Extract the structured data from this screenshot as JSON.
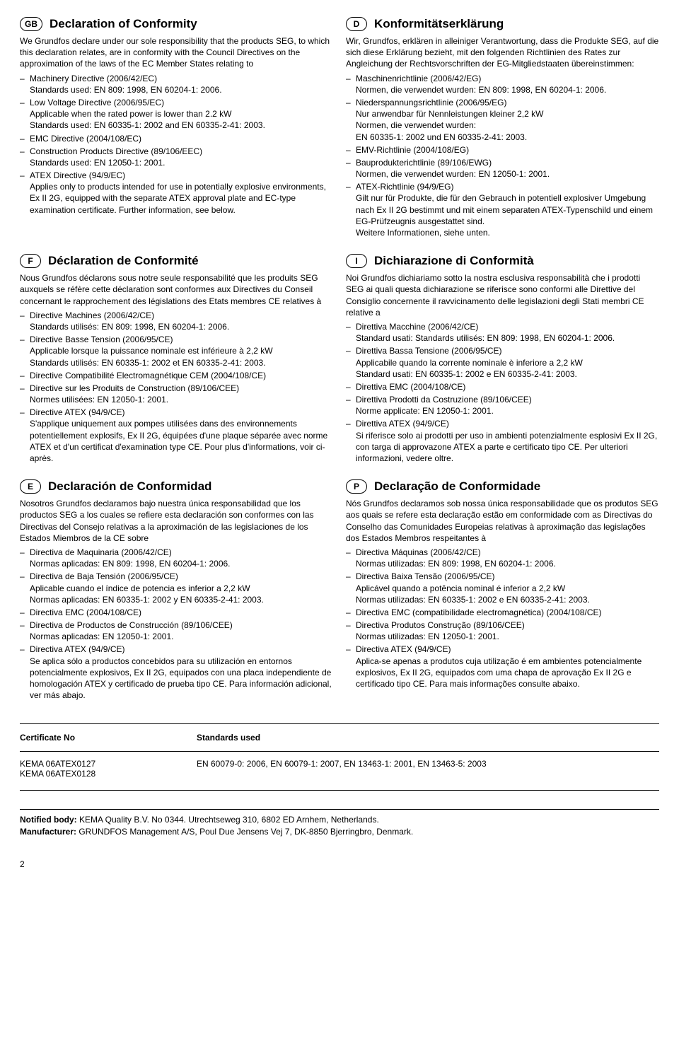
{
  "sections": [
    {
      "badge": "GB",
      "title": "Declaration of Conformity",
      "intro": "We Grundfos declare under our sole responsibility that the products SEG, to which this declaration relates, are in conformity with the Council Directives on the approximation of the laws of the EC Member States relating to",
      "items": [
        {
          "title": "Machinery Directive (2006/42/EC)",
          "lines": [
            "Standards used: EN 809: 1998, EN 60204-1: 2006."
          ]
        },
        {
          "title": "Low Voltage Directive (2006/95/EC)",
          "lines": [
            "Applicable when the rated power is lower than 2.2 kW",
            "Standards used: EN 60335-1: 2002 and EN 60335-2-41: 2003."
          ]
        },
        {
          "title": "EMC Directive (2004/108/EC)",
          "lines": []
        },
        {
          "title": "Construction Products Directive (89/106/EEC)",
          "lines": [
            "Standards used: EN 12050-1: 2001."
          ]
        },
        {
          "title": "ATEX Directive (94/9/EC)",
          "lines": [
            "Applies only to products intended for use in potentially explosive environments, Ex II 2G, equipped with the separate ATEX approval plate and EC-type examination certificate. Further information, see below."
          ]
        }
      ]
    },
    {
      "badge": "D",
      "title": "Konformitätserklärung",
      "intro": "Wir, Grundfos, erklären in alleiniger Verantwortung, dass die Produkte SEG, auf die sich diese Erklärung bezieht, mit den folgenden Richtlinien des Rates zur Angleichung der Rechtsvorschriften der EG-Mitgliedstaaten übereinstimmen:",
      "items": [
        {
          "title": "Maschinenrichtlinie (2006/42/EG)",
          "lines": [
            "Normen, die verwendet wurden: EN 809: 1998, EN 60204-1: 2006."
          ]
        },
        {
          "title": "Niederspannungsrichtlinie (2006/95/EG)",
          "lines": [
            "Nur anwendbar für Nennleistungen kleiner 2,2 kW",
            "Normen, die verwendet wurden:",
            "EN 60335-1: 2002 und EN 60335-2-41: 2003."
          ]
        },
        {
          "title": "EMV-Richtlinie (2004/108/EG)",
          "lines": []
        },
        {
          "title": "Bauprodukterichtlinie (89/106/EWG)",
          "lines": [
            "Normen, die verwendet wurden: EN 12050-1: 2001."
          ]
        },
        {
          "title": "ATEX-Richtlinie (94/9/EG)",
          "lines": [
            "Gilt nur für Produkte, die für den Gebrauch in potentiell explosiver Umgebung nach Ex II 2G bestimmt und mit einem separaten ATEX-Typenschild und einem EG-Prüfzeugnis ausgestattet sind.",
            "Weitere Informationen, siehe unten."
          ]
        }
      ]
    },
    {
      "badge": "F",
      "title": "Déclaration de Conformité",
      "intro": "Nous Grundfos déclarons sous notre seule responsabilité que les produits SEG auxquels se réfère cette déclaration sont conformes aux Directives du Conseil concernant le rapprochement des législations des Etats membres CE relatives à",
      "items": [
        {
          "title": "Directive Machines (2006/42/CE)",
          "lines": [
            "Standards utilisés: EN 809: 1998, EN 60204-1: 2006."
          ]
        },
        {
          "title": "Directive Basse Tension (2006/95/CE)",
          "lines": [
            "Applicable lorsque la puissance nominale est inférieure à 2,2 kW",
            "Standards utilisés: EN 60335-1: 2002 et EN 60335-2-41: 2003."
          ]
        },
        {
          "title": "Directive Compatibilité Electromagnétique CEM (2004/108/CE)",
          "lines": []
        },
        {
          "title": "Directive sur les Produits de Construction (89/106/CEE)",
          "lines": [
            "Normes utilisées: EN 12050-1: 2001."
          ]
        },
        {
          "title": "Directive ATEX (94/9/CE)",
          "lines": [
            "S'applique uniquement aux pompes utilisées dans des environnements potentiellement explosifs, Ex II 2G, équipées d'une plaque séparée avec norme ATEX et d'un certificat d'examination type CE. Pour plus d'informations, voir ci-après."
          ]
        }
      ]
    },
    {
      "badge": "I",
      "title": "Dichiarazione di Conformità",
      "intro": "Noi Grundfos dichiariamo sotto la nostra esclusiva responsabilità che i prodotti SEG ai quali questa dichiarazione se riferisce sono conformi alle Direttive del Consiglio concernente il ravvicinamento delle legislazioni degli Stati membri CE relative a",
      "items": [
        {
          "title": "Direttiva Macchine (2006/42/CE)",
          "lines": [
            "Standard usati: Standards utilisés: EN 809: 1998, EN 60204-1: 2006."
          ]
        },
        {
          "title": "Direttiva Bassa Tensione (2006/95/CE)",
          "lines": [
            "Applicabile quando la corrente nominale è inferiore a 2,2 kW",
            "Standard usati: EN 60335-1: 2002 e EN 60335-2-41: 2003."
          ]
        },
        {
          "title": "Direttiva EMC (2004/108/CE)",
          "lines": []
        },
        {
          "title": "Direttiva Prodotti da Costruzione (89/106/CEE)",
          "lines": [
            "Norme applicate: EN 12050-1: 2001."
          ]
        },
        {
          "title": "Direttiva ATEX (94/9/CE)",
          "lines": [
            "Si riferisce solo ai prodotti per uso in ambienti potenzialmente esplosivi Ex II 2G, con targa di approvazone ATEX a parte e certificato tipo CE. Per ulteriori informazioni, vedere oltre."
          ]
        }
      ]
    },
    {
      "badge": "E",
      "title": "Declaración de Conformidad",
      "intro": "Nosotros Grundfos declaramos bajo nuestra única responsabilidad que los productos SEG a los cuales se refiere esta declaración son conformes con las Directivas del Consejo relativas a la aproximación de las legislaciones de los Estados Miembros de la CE sobre",
      "items": [
        {
          "title": "Directiva de Maquinaria (2006/42/CE)",
          "lines": [
            "Normas aplicadas: EN 809: 1998, EN 60204-1: 2006."
          ]
        },
        {
          "title": "Directiva de Baja Tensión (2006/95/CE)",
          "lines": [
            "Aplicable cuando el índice de potencia es inferior a 2,2 kW",
            "Normas aplicadas: EN 60335-1: 2002 y EN 60335-2-41: 2003."
          ]
        },
        {
          "title": "Directiva EMC (2004/108/CE)",
          "lines": []
        },
        {
          "title": "Directiva de Productos de Construcción (89/106/CEE)",
          "lines": [
            "Normas aplicadas: EN 12050-1: 2001."
          ]
        },
        {
          "title": "Directiva ATEX (94/9/CE)",
          "lines": [
            "Se aplica sólo a productos concebidos para su utilización en entornos potencialmente explosivos, Ex II 2G, equipados con una placa independiente de homologación ATEX y certificado de prueba tipo CE. Para información adicional, ver más abajo."
          ]
        }
      ]
    },
    {
      "badge": "P",
      "title": "Declaração de Conformidade",
      "intro": "Nós Grundfos declaramos sob nossa única responsabilidade que os produtos SEG aos quais se refere esta declaração estão em conformidade com as Directivas do Conselho das Comunidades Europeias relativas à aproximação das legislações dos Estados Membros respeitantes à",
      "items": [
        {
          "title": "Directiva Máquinas (2006/42/CE)",
          "lines": [
            "Normas utilizadas: EN 809: 1998, EN 60204-1: 2006."
          ]
        },
        {
          "title": "Directiva Baixa Tensão (2006/95/CE)",
          "lines": [
            "Aplicável quando a potência nominal é inferior a 2,2 kW",
            "Normas utilizadas: EN 60335-1: 2002 e EN 60335-2-41: 2003."
          ]
        },
        {
          "title": "Directiva EMC (compatibilidade electromagnética) (2004/108/CE)",
          "lines": []
        },
        {
          "title": "Directiva Produtos Construção (89/106/CEE)",
          "lines": [
            "Normas utilizadas: EN 12050-1: 2001."
          ]
        },
        {
          "title": "Directiva ATEX (94/9/CE)",
          "lines": [
            "Aplica-se apenas a produtos cuja utilização é em ambientes potencialmente explosivos, Ex II 2G, equipados com uma chapa de aprovação Ex II 2G e certificado tipo CE. Para mais informações consulte abaixo."
          ]
        }
      ]
    }
  ],
  "cert": {
    "h1": "Certificate No",
    "h2": "Standards used",
    "nos": [
      "KEMA 06ATEX0127",
      "KEMA 06ATEX0128"
    ],
    "stds": "EN 60079-0: 2006, EN 60079-1: 2007, EN 13463-1: 2001, EN 13463-5: 2003"
  },
  "footer": {
    "nb_label": "Notified body:",
    "nb_text": " KEMA Quality B.V. No 0344. Utrechtseweg 310, 6802 ED Arnhem, Netherlands.",
    "mf_label": "Manufacturer:",
    "mf_text": " GRUNDFOS Management A/S, Poul Due Jensens Vej 7, DK-8850 Bjerringbro, Denmark."
  },
  "pagenum": "2"
}
